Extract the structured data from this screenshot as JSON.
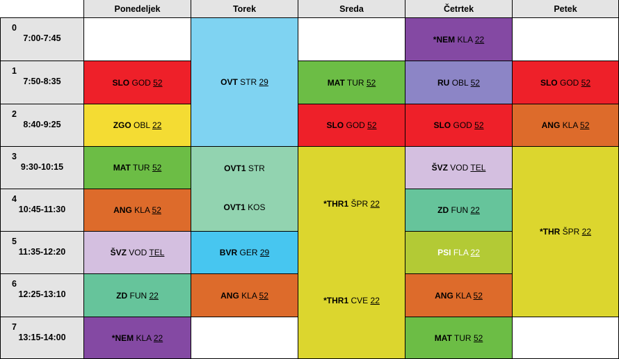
{
  "days": [
    "Ponedeljek",
    "Torek",
    "Sreda",
    "Četrtek",
    "Petek"
  ],
  "periods": [
    {
      "num": "0",
      "time": "7:00-7:45"
    },
    {
      "num": "1",
      "time": "7:50-8:35"
    },
    {
      "num": "2",
      "time": "8:40-9:25"
    },
    {
      "num": "3",
      "time": "9:30-10:15"
    },
    {
      "num": "4",
      "time": "10:45-11:30"
    },
    {
      "num": "5",
      "time": "11:35-12:20"
    },
    {
      "num": "6",
      "time": "12:25-13:10"
    },
    {
      "num": "7",
      "time": "13:15-14:00"
    }
  ],
  "colors": {
    "red": "#ee2029",
    "yellow": "#f4dc33",
    "green": "#6cbd45",
    "orange": "#dd6b2b",
    "lavender": "#d4bfe0",
    "teal": "#66c49b",
    "purple": "#8449a3",
    "lightblue": "#7fd3f2",
    "mint": "#92d3b0",
    "skyblue": "#47c6f0",
    "periwinkle": "#8c85c6",
    "olive": "#dcd62e",
    "lime": "#b3ca35",
    "header_gray": "#e4e4e4"
  },
  "lessons": {
    "pon_1": {
      "subject": "SLO",
      "teacher": "GOD",
      "room": "52"
    },
    "pon_2": {
      "subject": "ZGO",
      "teacher": "OBL",
      "room": "22"
    },
    "pon_3": {
      "subject": "MAT",
      "teacher": "TUR",
      "room": "52"
    },
    "pon_4": {
      "subject": "ANG",
      "teacher": "KLA",
      "room": "52"
    },
    "pon_5": {
      "subject": "ŠVZ",
      "teacher": "VOD",
      "room": "TEL"
    },
    "pon_6": {
      "subject": "ZD",
      "teacher": "FUN",
      "room": "22"
    },
    "pon_7": {
      "subject": "*NEM",
      "teacher": "KLA",
      "room": "22"
    },
    "tor_12": {
      "subject": "OVT",
      "teacher": "STR",
      "room": "29"
    },
    "tor_34_a": {
      "subject": "OVT1",
      "teacher": "STR"
    },
    "tor_34_b": {
      "subject": "OVT1",
      "teacher": "KOS"
    },
    "tor_5": {
      "subject": "BVR",
      "teacher": "GER",
      "room": "29"
    },
    "tor_6": {
      "subject": "ANG",
      "teacher": "KLA",
      "room": "52"
    },
    "sre_1": {
      "subject": "MAT",
      "teacher": "TUR",
      "room": "52"
    },
    "sre_2": {
      "subject": "SLO",
      "teacher": "GOD",
      "room": "52"
    },
    "sre_37_a": {
      "subject": "*THR1",
      "teacher": "ŠPR",
      "room": "22"
    },
    "sre_37_b": {
      "subject": "*THR1",
      "teacher": "CVE",
      "room": "22"
    },
    "cet_0": {
      "subject": "*NEM",
      "teacher": "KLA",
      "room": "22"
    },
    "cet_1": {
      "subject": "RU",
      "teacher": "OBL",
      "room": "52"
    },
    "cet_2": {
      "subject": "SLO",
      "teacher": "GOD",
      "room": "52"
    },
    "cet_3": {
      "subject": "ŠVZ",
      "teacher": "VOD",
      "room": "TEL"
    },
    "cet_4": {
      "subject": "ZD",
      "teacher": "FUN",
      "room": "22"
    },
    "cet_5": {
      "subject": "PSI",
      "teacher": "FLA",
      "room": "22"
    },
    "cet_6": {
      "subject": "ANG",
      "teacher": "KLA",
      "room": "52"
    },
    "cet_7": {
      "subject": "MAT",
      "teacher": "TUR",
      "room": "52"
    },
    "pet_1": {
      "subject": "SLO",
      "teacher": "GOD",
      "room": "52"
    },
    "pet_2": {
      "subject": "ANG",
      "teacher": "KLA",
      "room": "52"
    },
    "pet_36": {
      "subject": "*THR",
      "teacher": "ŠPR",
      "room": "22"
    }
  }
}
